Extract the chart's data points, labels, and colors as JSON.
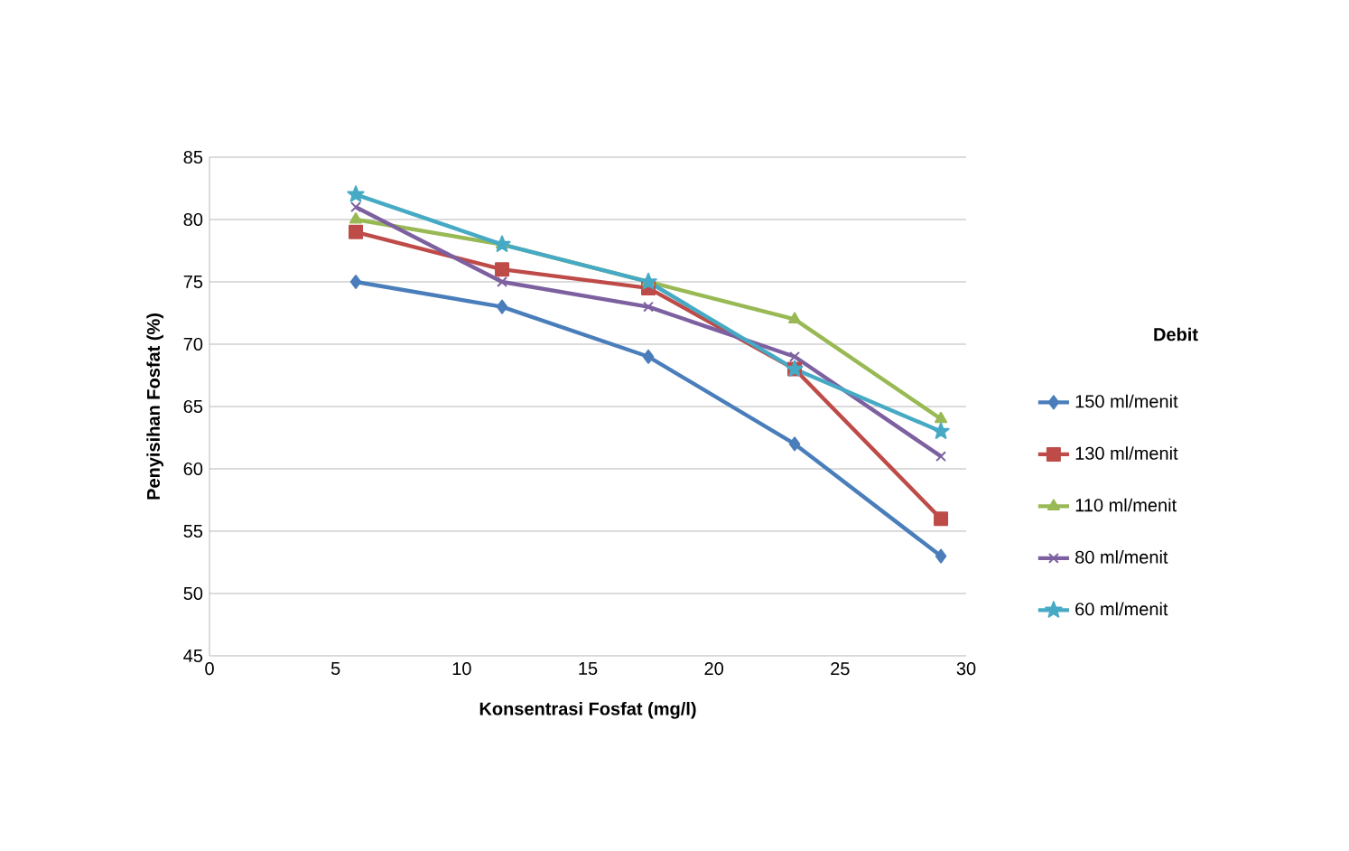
{
  "chart_data": {
    "type": "line",
    "xlabel": "Konsentrasi Fosfat (mg/l)",
    "ylabel": "Penyisihan Fosfat (%)",
    "legend_title": "Debit",
    "legend": "right",
    "grid": "y",
    "xlim": [
      0,
      30
    ],
    "xticks": [
      0,
      5,
      10,
      15,
      20,
      25,
      30
    ],
    "ylim": [
      45,
      85
    ],
    "yticks": [
      45,
      50,
      55,
      60,
      65,
      70,
      75,
      80,
      85
    ],
    "x": [
      5.8,
      11.6,
      17.4,
      23.2,
      29.0
    ],
    "series": [
      {
        "name": "150 ml/menit",
        "color": "#4a7ebb",
        "marker": "diamond",
        "values": [
          75,
          73,
          69,
          62,
          53
        ]
      },
      {
        "name": "130 ml/menit",
        "color": "#be4b48",
        "marker": "square",
        "values": [
          79,
          76,
          74.5,
          68,
          56
        ]
      },
      {
        "name": "110 ml/menit",
        "color": "#98b954",
        "marker": "triangle",
        "values": [
          80,
          78,
          75,
          72,
          64
        ]
      },
      {
        "name": "80 ml/menit",
        "color": "#7d60a0",
        "marker": "cross",
        "values": [
          81,
          75,
          73,
          69,
          61
        ]
      },
      {
        "name": "60 ml/menit",
        "color": "#46aac5",
        "marker": "star",
        "values": [
          82,
          78,
          75,
          68,
          63
        ]
      }
    ]
  }
}
